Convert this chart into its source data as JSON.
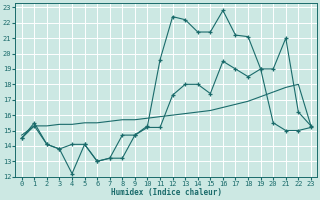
{
  "xlabel": "Humidex (Indice chaleur)",
  "xlim": [
    -0.5,
    23.5
  ],
  "ylim": [
    12,
    23.3
  ],
  "yticks": [
    12,
    13,
    14,
    15,
    16,
    17,
    18,
    19,
    20,
    21,
    22,
    23
  ],
  "xticks": [
    0,
    1,
    2,
    3,
    4,
    5,
    6,
    7,
    8,
    9,
    10,
    11,
    12,
    13,
    14,
    15,
    16,
    17,
    18,
    19,
    20,
    21,
    22,
    23
  ],
  "bg_color": "#cce8e3",
  "grid_color": "#ffffff",
  "line_color": "#1a6b6b",
  "line1_x": [
    0,
    1,
    2,
    3,
    4,
    5,
    6,
    7,
    8,
    9,
    10,
    11,
    12,
    13,
    14,
    15,
    16,
    17,
    18,
    19,
    20,
    21,
    22,
    23
  ],
  "line1_y": [
    14.5,
    15.5,
    14.1,
    13.8,
    12.2,
    14.1,
    13.0,
    13.2,
    13.2,
    14.7,
    15.3,
    19.6,
    22.4,
    22.2,
    21.4,
    21.4,
    22.8,
    21.2,
    21.1,
    19.0,
    19.0,
    21.0,
    16.2,
    15.3
  ],
  "line2_x": [
    0,
    1,
    2,
    3,
    4,
    5,
    6,
    7,
    8,
    9,
    10,
    11,
    12,
    13,
    14,
    15,
    16,
    17,
    18,
    19,
    20,
    21,
    22,
    23
  ],
  "line2_y": [
    14.7,
    15.3,
    15.3,
    15.4,
    15.4,
    15.5,
    15.5,
    15.6,
    15.7,
    15.7,
    15.8,
    15.9,
    16.0,
    16.1,
    16.2,
    16.3,
    16.5,
    16.7,
    16.9,
    17.2,
    17.5,
    17.8,
    18.0,
    15.3
  ],
  "line3_x": [
    0,
    1,
    2,
    3,
    4,
    5,
    6,
    7,
    8,
    9,
    10,
    11,
    12,
    13,
    14,
    15,
    16,
    17,
    18,
    19,
    20,
    21,
    22,
    23
  ],
  "line3_y": [
    14.5,
    15.3,
    14.1,
    13.8,
    14.1,
    14.1,
    13.0,
    13.2,
    14.7,
    14.7,
    15.2,
    15.2,
    17.3,
    18.0,
    18.0,
    17.4,
    19.5,
    19.0,
    18.5,
    19.0,
    15.5,
    15.0,
    15.0,
    15.2
  ]
}
